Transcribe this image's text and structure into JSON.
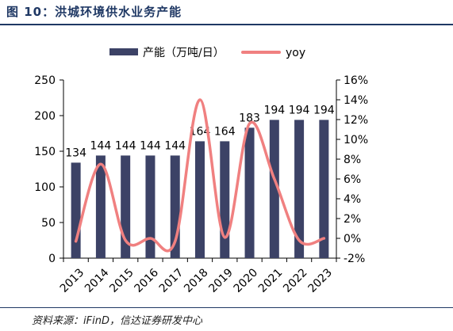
{
  "figure": {
    "title": "图 10：洪城环境供水业务产能",
    "source": "资料来源：iFinD，信达证券研发中心"
  },
  "colors": {
    "bar": "#3c4266",
    "line": "#f08080",
    "axis": "#000000",
    "title": "#1f3864"
  },
  "chart_data": {
    "type": "bar",
    "categories": [
      "2013",
      "2014",
      "2015",
      "2016",
      "2017",
      "2018",
      "2019",
      "2020",
      "2021",
      "2022",
      "2023"
    ],
    "series": [
      {
        "name": "产能（万吨/日）",
        "type": "bar",
        "axis": "left",
        "values": [
          134,
          144,
          144,
          144,
          144,
          164,
          164,
          183,
          194,
          194,
          194
        ]
      },
      {
        "name": "yoy",
        "type": "line",
        "axis": "right",
        "smooth": true,
        "values": [
          -0.3,
          7.5,
          -0.2,
          0.0,
          -0.3,
          14.0,
          0.1,
          11.6,
          6.0,
          -0.2,
          0.0
        ]
      }
    ],
    "data_labels": [
      "134",
      "144",
      "144",
      "144",
      "144",
      "164",
      "164",
      "183",
      "194",
      "194",
      "194"
    ],
    "ylim_left": [
      0,
      250
    ],
    "yticks_left": [
      "0",
      "50",
      "100",
      "150",
      "200",
      "250"
    ],
    "ylim_right": [
      -2,
      16
    ],
    "yticks_right": [
      "-2%",
      "0%",
      "2%",
      "4%",
      "6%",
      "8%",
      "10%",
      "12%",
      "14%",
      "16%"
    ],
    "legend": {
      "position": "top",
      "items": [
        "产能（万吨/日）",
        "yoy"
      ]
    },
    "grid": false
  }
}
